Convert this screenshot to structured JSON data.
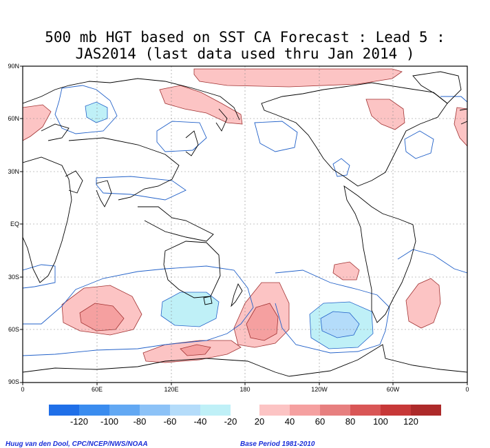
{
  "title": {
    "line1": "500 mb HGT based on SST CA Forecast : Lead 5 :",
    "line2": "JAS2014 (last data used thru Jan 2014 )"
  },
  "lat_labels": [
    "90N",
    "60N",
    "30N",
    "EQ",
    "30S",
    "60S",
    "90S"
  ],
  "lon_labels": [
    "0",
    "60E",
    "120E",
    "180",
    "120W",
    "60W",
    "0"
  ],
  "colorbar": {
    "negative": [
      {
        "label": "-120",
        "color": "#1f6fe8"
      },
      {
        "label": "-100",
        "color": "#3a8cef"
      },
      {
        "label": "-80",
        "color": "#62a8f3"
      },
      {
        "label": "-60",
        "color": "#8cc2f7"
      },
      {
        "label": "-40",
        "color": "#b4dcfa"
      },
      {
        "label": "-20",
        "color": "#bff0f7"
      }
    ],
    "positive": [
      {
        "label": "20",
        "color": "#fcc4c4"
      },
      {
        "label": "40",
        "color": "#f5a0a0"
      },
      {
        "label": "60",
        "color": "#e77f7f"
      },
      {
        "label": "80",
        "color": "#d95656"
      },
      {
        "label": "100",
        "color": "#c73838"
      },
      {
        "label": "120",
        "color": "#ad2a2a"
      }
    ]
  },
  "footer": {
    "left": "Huug van den Dool, CPC/NCEP/NWS/NOAA",
    "right": "Base Period 1981-2010"
  },
  "colors": {
    "contour_line": "#1f5fc8",
    "positive_line": "#8a1f1f",
    "land_outline": "#000000",
    "grid": "#808080"
  }
}
